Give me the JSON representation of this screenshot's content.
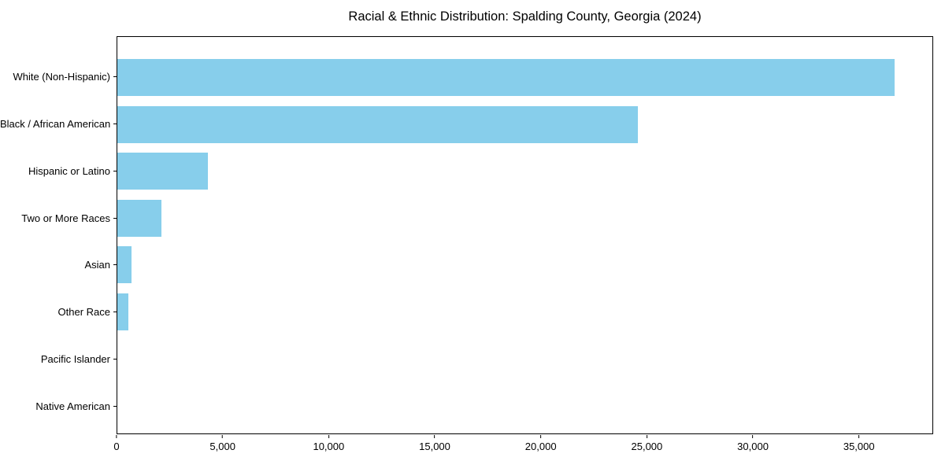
{
  "chart": {
    "title": "Racial & Ethnic Distribution: Spalding County, Georgia (2024)"
  },
  "chart_data": {
    "type": "bar",
    "orientation": "horizontal",
    "title": "Racial & Ethnic Distribution: Spalding County, Georgia (2024)",
    "xlabel": "",
    "ylabel": "",
    "categories": [
      "White (Non-Hispanic)",
      "Black / African American",
      "Hispanic or Latino",
      "Two or More Races",
      "Asian",
      "Other Race",
      "Pacific Islander",
      "Native American"
    ],
    "values": [
      36700,
      24600,
      4270,
      2100,
      670,
      520,
      0,
      0
    ],
    "xlim": [
      0,
      38500
    ],
    "x_ticks": [
      0,
      5000,
      10000,
      15000,
      20000,
      25000,
      30000,
      35000
    ],
    "x_tick_labels": [
      "0",
      "5,000",
      "10,000",
      "15,000",
      "20,000",
      "25,000",
      "30,000",
      "35,000"
    ],
    "grid": false,
    "legend": null,
    "bar_color": "#87CEEB"
  },
  "colors": {
    "bar": "#87CEEB",
    "axis": "#000000",
    "text": "#000000",
    "background": "#ffffff"
  }
}
